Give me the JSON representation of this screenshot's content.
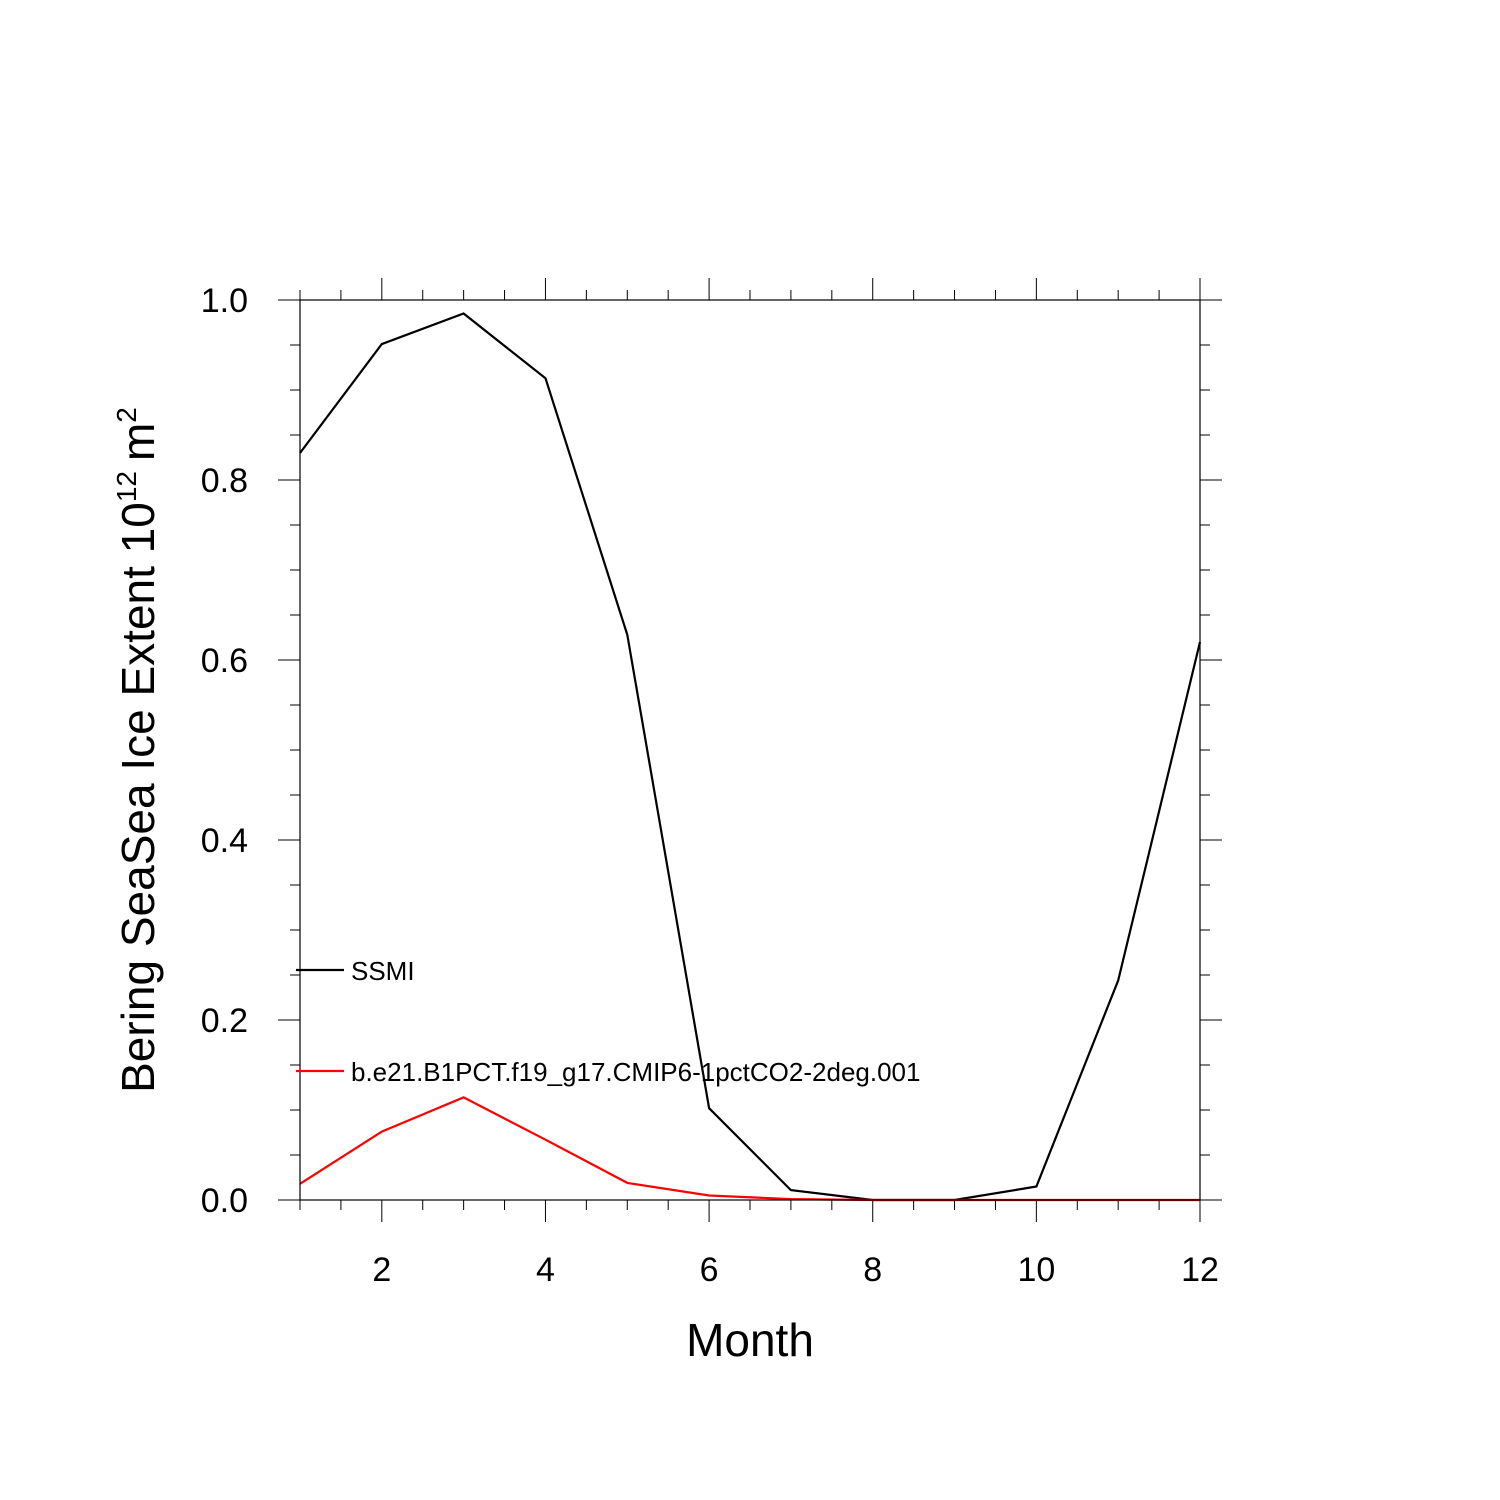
{
  "chart_data": {
    "type": "line",
    "xlabel": "Month",
    "ylabel": {
      "text": "Bering SeaSea Ice Extent 10",
      "superscript_exponent": "12",
      "unit": "m",
      "superscript_unit": "2"
    },
    "xlim": [
      1,
      12
    ],
    "ylim": [
      0,
      1
    ],
    "x_ticks": [
      2,
      4,
      6,
      8,
      10,
      12
    ],
    "x_tick_labels": [
      "2",
      "4",
      "6",
      "8",
      "10",
      "12"
    ],
    "y_ticks": [
      0,
      0.2,
      0.4,
      0.6,
      0.8,
      1.0
    ],
    "y_tick_labels": [
      "0.0",
      "0.2",
      "0.4",
      "0.6",
      "0.8",
      "1.0"
    ],
    "grid": false,
    "legend_position": "inside-lower-left",
    "series": [
      {
        "name": "SSMI",
        "color": "#000000",
        "x": [
          1,
          2,
          3,
          4,
          5,
          6,
          7,
          8,
          9,
          10,
          11,
          12
        ],
        "values": [
          0.83,
          0.951,
          0.985,
          0.913,
          0.628,
          0.102,
          0.011,
          0.0,
          0.0,
          0.015,
          0.244,
          0.62
        ]
      },
      {
        "name": "b.e21.B1PCT.f19_g17.CMIP6-1pctCO2-2deg.001",
        "color": "#ff0000",
        "x": [
          1,
          2,
          3,
          4,
          5,
          6,
          7,
          8,
          9,
          10,
          11,
          12
        ],
        "values": [
          0.018,
          0.076,
          0.114,
          0.067,
          0.019,
          0.005,
          0.001,
          0.0,
          0.0,
          0.0,
          0.0,
          0.0
        ]
      }
    ]
  }
}
